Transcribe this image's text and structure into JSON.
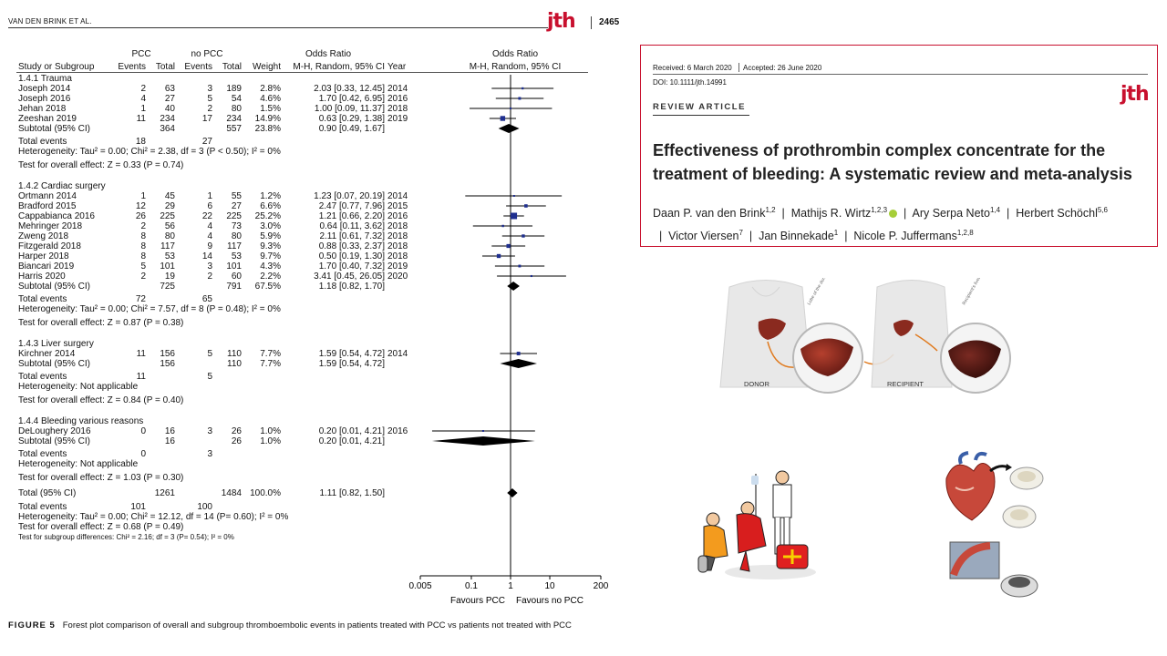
{
  "page": {
    "running_head": "VAN DEN BRINK ET AL.",
    "journal_logo": "jth",
    "page_number": "2465"
  },
  "headers": {
    "pcc": "PCC",
    "no_pcc": "no PCC",
    "odds_ratio": "Odds Ratio",
    "study_or_subgroup": "Study or Subgroup",
    "events": "Events",
    "total": "Total",
    "weight": "Weight",
    "method": "M-H, Random, 95% CI",
    "year": "Year",
    "odds_ratio_right": "Odds Ratio",
    "method_right": "M-H, Random, 95% CI"
  },
  "chart_data": {
    "type": "forest",
    "scale": "log",
    "xlim": [
      0.005,
      200
    ],
    "ticks": [
      "0.005",
      "0.1",
      "1",
      "10",
      "200"
    ],
    "favours_left": "Favours PCC",
    "favours_right": "Favours no PCC",
    "subgroups": [
      {
        "name": "1.4.1 Trauma",
        "studies": [
          {
            "study": "Joseph 2014",
            "e1": "2",
            "t1": "63",
            "e2": "3",
            "t2": "189",
            "weight": "2.8%",
            "ci": "2.03 [0.33, 12.45]",
            "year": "2014",
            "or": 2.03,
            "lo": 0.33,
            "hi": 12.45
          },
          {
            "study": "Joseph 2016",
            "e1": "4",
            "t1": "27",
            "e2": "5",
            "t2": "54",
            "weight": "4.6%",
            "ci": "1.70 [0.42, 6.95]",
            "year": "2016",
            "or": 1.7,
            "lo": 0.42,
            "hi": 6.95
          },
          {
            "study": "Jehan 2018",
            "e1": "1",
            "t1": "40",
            "e2": "2",
            "t2": "80",
            "weight": "1.5%",
            "ci": "1.00 [0.09, 11.37]",
            "year": "2018",
            "or": 1.0,
            "lo": 0.09,
            "hi": 11.37
          },
          {
            "study": "Zeeshan 2019",
            "e1": "11",
            "t1": "234",
            "e2": "17",
            "t2": "234",
            "weight": "14.9%",
            "ci": "0.63 [0.29, 1.38]",
            "year": "2019",
            "or": 0.63,
            "lo": 0.29,
            "hi": 1.38
          }
        ],
        "subtotal": {
          "label": "Subtotal (95% CI)",
          "t1": "364",
          "t2": "557",
          "weight": "23.8%",
          "ci": "0.90 [0.49, 1.67]",
          "or": 0.9,
          "lo": 0.49,
          "hi": 1.67
        },
        "total_events": {
          "label": "Total events",
          "e1": "18",
          "e2": "27"
        },
        "heterogeneity": "Heterogeneity: Tau² = 0.00; Chi² = 2.38, df = 3 (P < 0.50); I² = 0%",
        "overall_effect": "Test for overall effect: Z = 0.33 (P = 0.74)"
      },
      {
        "name": "1.4.2 Cardiac surgery",
        "studies": [
          {
            "study": "Ortmann 2014",
            "e1": "1",
            "t1": "45",
            "e2": "1",
            "t2": "55",
            "weight": "1.2%",
            "ci": "1.23 [0.07, 20.19]",
            "year": "2014",
            "or": 1.23,
            "lo": 0.07,
            "hi": 20.19
          },
          {
            "study": "Bradford 2015",
            "e1": "12",
            "t1": "29",
            "e2": "6",
            "t2": "27",
            "weight": "6.6%",
            "ci": "2.47 [0.77, 7.96]",
            "year": "2015",
            "or": 2.47,
            "lo": 0.77,
            "hi": 7.96
          },
          {
            "study": "Cappabianca 2016",
            "e1": "26",
            "t1": "225",
            "e2": "22",
            "t2": "225",
            "weight": "25.2%",
            "ci": "1.21 [0.66, 2.20]",
            "year": "2016",
            "or": 1.21,
            "lo": 0.66,
            "hi": 2.2
          },
          {
            "study": "Mehringer 2018",
            "e1": "2",
            "t1": "56",
            "e2": "4",
            "t2": "73",
            "weight": "3.0%",
            "ci": "0.64 [0.11, 3.62]",
            "year": "2018",
            "or": 0.64,
            "lo": 0.11,
            "hi": 3.62
          },
          {
            "study": "Zweng 2018",
            "e1": "8",
            "t1": "80",
            "e2": "4",
            "t2": "80",
            "weight": "5.9%",
            "ci": "2.11 [0.61, 7.32]",
            "year": "2018",
            "or": 2.11,
            "lo": 0.61,
            "hi": 7.32
          },
          {
            "study": "Fitzgerald 2018",
            "e1": "8",
            "t1": "117",
            "e2": "9",
            "t2": "117",
            "weight": "9.3%",
            "ci": "0.88 [0.33, 2.37]",
            "year": "2018",
            "or": 0.88,
            "lo": 0.33,
            "hi": 2.37
          },
          {
            "study": "Harper 2018",
            "e1": "8",
            "t1": "53",
            "e2": "14",
            "t2": "53",
            "weight": "9.7%",
            "ci": "0.50 [0.19, 1.30]",
            "year": "2018",
            "or": 0.5,
            "lo": 0.19,
            "hi": 1.3
          },
          {
            "study": "Biancari 2019",
            "e1": "5",
            "t1": "101",
            "e2": "3",
            "t2": "101",
            "weight": "4.3%",
            "ci": "1.70 [0.40, 7.32]",
            "year": "2019",
            "or": 1.7,
            "lo": 0.4,
            "hi": 7.32
          },
          {
            "study": "Harris 2020",
            "e1": "2",
            "t1": "19",
            "e2": "2",
            "t2": "60",
            "weight": "2.2%",
            "ci": "3.41 [0.45, 26.05]",
            "year": "2020",
            "or": 3.41,
            "lo": 0.45,
            "hi": 26.05
          }
        ],
        "subtotal": {
          "label": "Subtotal (95% CI)",
          "t1": "725",
          "t2": "791",
          "weight": "67.5%",
          "ci": "1.18 [0.82, 1.70]",
          "or": 1.18,
          "lo": 0.82,
          "hi": 1.7
        },
        "total_events": {
          "label": "Total events",
          "e1": "72",
          "e2": "65"
        },
        "heterogeneity": "Heterogeneity: Tau² = 0.00; Chi² = 7.57, df = 8 (P = 0.48); I² = 0%",
        "overall_effect": "Test for overall effect: Z = 0.87 (P = 0.38)"
      },
      {
        "name": "1.4.3 Liver surgery",
        "studies": [
          {
            "study": "Kirchner 2014",
            "e1": "11",
            "t1": "156",
            "e2": "5",
            "t2": "110",
            "weight": "7.7%",
            "ci": "1.59 [0.54, 4.72]",
            "year": "2014",
            "or": 1.59,
            "lo": 0.54,
            "hi": 4.72
          }
        ],
        "subtotal": {
          "label": "Subtotal (95% CI)",
          "t1": "156",
          "t2": "110",
          "weight": "7.7%",
          "ci": "1.59 [0.54, 4.72]",
          "or": 1.59,
          "lo": 0.54,
          "hi": 4.72
        },
        "total_events": {
          "label": "Total events",
          "e1": "11",
          "e2": "5"
        },
        "heterogeneity": "Heterogeneity: Not applicable",
        "overall_effect": "Test for overall effect: Z = 0.84 (P = 0.40)"
      },
      {
        "name": "1.4.4 Bleeding various reasons",
        "studies": [
          {
            "study": "DeLoughery 2016",
            "e1": "0",
            "t1": "16",
            "e2": "3",
            "t2": "26",
            "weight": "1.0%",
            "ci": "0.20 [0.01, 4.21]",
            "year": "2016",
            "or": 0.2,
            "lo": 0.01,
            "hi": 4.21
          }
        ],
        "subtotal": {
          "label": "Subtotal (95% CI)",
          "t1": "16",
          "t2": "26",
          "weight": "1.0%",
          "ci": "0.20 [0.01, 4.21]",
          "or": 0.2,
          "lo": 0.01,
          "hi": 4.21
        },
        "total_events": {
          "label": "Total events",
          "e1": "0",
          "e2": "3"
        },
        "heterogeneity": "Heterogeneity: Not applicable",
        "overall_effect": "Test for overall effect: Z = 1.03 (P = 0.30)"
      }
    ],
    "total": {
      "label": "Total (95% CI)",
      "t1": "1261",
      "t2": "1484",
      "weight": "100.0%",
      "ci": "1.11 [0.82, 1.50]",
      "or": 1.11,
      "lo": 0.82,
      "hi": 1.5
    },
    "total_events": {
      "label": "Total events",
      "e1": "101",
      "e2": "100"
    },
    "heterogeneity": "Heterogeneity: Tau² = 0.00; Chi² = 12.12, df = 14 (P= 0.60); I² = 0%",
    "overall_effect": "Test for overall effect:  Z = 0.68 (P = 0.49)",
    "subgroup_differences": "Test for subgroup differences: Chi² = 2.16; df = 3 (P= 0.54); I² = 0%",
    "colors": {
      "study_square": "#1f2f8f",
      "diamond": "#000000"
    }
  },
  "caption": {
    "label": "FIGURE 5",
    "text": "Forest plot comparison of overall and subgroup thromboembolic events in patients treated with PCC vs patients not treated with PCC"
  },
  "article": {
    "received": "Received: 6 March 2020",
    "accepted": "Accepted: 26 June 2020",
    "doi": "DOI: 10.1111/jth.14991",
    "type": "REVIEW ARTICLE",
    "logo": "jth",
    "title": "Effectiveness of prothrombin complex concentrate for the treatment of bleeding: A systematic review and meta-analysis",
    "authors": [
      {
        "name": "Daan P. van den Brink",
        "sup": "1,2"
      },
      {
        "name": "Mathijs R. Wirtz",
        "sup": "1,2,3"
      },
      {
        "name": "Ary Serpa Neto",
        "sup": "1,4"
      },
      {
        "name": "Herbert Schöchl",
        "sup": "5,6"
      },
      {
        "name": "Victor Viersen",
        "sup": "7"
      },
      {
        "name": "Jan Binnekade",
        "sup": "1"
      },
      {
        "name": "Nicole P. Juffermans",
        "sup": "1,2,8"
      }
    ],
    "accent": "#c8102e"
  },
  "illustration": {
    "donor_label": "DONOR",
    "recipient_label": "RECIPIENT",
    "donor_liver_label": "Lobe of the donor's liver",
    "recipient_liver_label": "Recipient's liver removed"
  }
}
